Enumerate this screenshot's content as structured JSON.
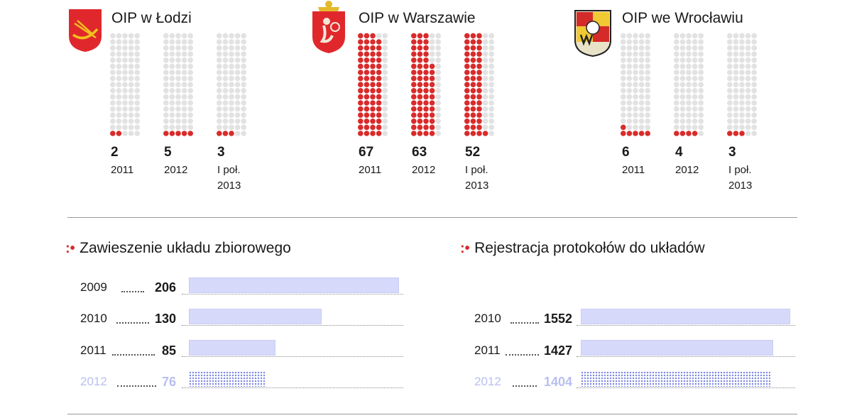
{
  "colors": {
    "dot_on": "#d92b2b",
    "dot_off": "#e2e2e2",
    "bar": "#d6d9fa",
    "projection": "#b9bff0",
    "accent": "#d62a2a"
  },
  "chart_data": [
    {
      "type": "dot-matrix",
      "title": "OIP w Łodzi",
      "emblem": "lodz-coat-of-arms-icon",
      "dots_per_column": 17,
      "columns_per_group": 5,
      "series": [
        {
          "value": 2,
          "value_label": "2",
          "label_lines": [
            "2011"
          ]
        },
        {
          "value": 5,
          "value_label": "5",
          "label_lines": [
            "2012"
          ]
        },
        {
          "value": 3,
          "value_label": "3",
          "label_lines": [
            "I poł.",
            "2013"
          ]
        }
      ]
    },
    {
      "type": "dot-matrix",
      "title": "OIP w Warszawie",
      "emblem": "warsaw-coat-of-arms-icon",
      "dots_per_column": 17,
      "columns_per_group": 5,
      "series": [
        {
          "value": 67,
          "value_label": "67",
          "label_lines": [
            "2011"
          ]
        },
        {
          "value": 63,
          "value_label": "63",
          "label_lines": [
            "2012"
          ]
        },
        {
          "value": 52,
          "value_label": "52",
          "label_lines": [
            "I poł.",
            "2013"
          ]
        }
      ]
    },
    {
      "type": "dot-matrix",
      "title": "OIP we Wrocławiu",
      "emblem": "wroclaw-coat-of-arms-icon",
      "dots_per_column": 17,
      "columns_per_group": 5,
      "series": [
        {
          "value": 6,
          "value_label": "6",
          "label_lines": [
            "2011"
          ]
        },
        {
          "value": 4,
          "value_label": "4",
          "label_lines": [
            "2012"
          ]
        },
        {
          "value": 3,
          "value_label": "3",
          "label_lines": [
            "I poł.",
            "2013"
          ]
        }
      ]
    },
    {
      "type": "bar",
      "orientation": "horizontal",
      "title": "Zawieszenie układu zbiorowego",
      "marker": ":•",
      "xlim": [
        0,
        206
      ],
      "categories": [
        "2009",
        "2010",
        "2011",
        "2012"
      ],
      "values": [
        206,
        130,
        85,
        76
      ],
      "value_labels": [
        "206",
        "130",
        "85",
        "76"
      ],
      "highlight": [
        false,
        false,
        false,
        true
      ]
    },
    {
      "type": "bar",
      "orientation": "horizontal",
      "title": "Rejestracja protokołów do układów",
      "marker": ":•",
      "xlim": [
        0,
        1552
      ],
      "categories": [
        "2010",
        "2011",
        "2012"
      ],
      "values": [
        1552,
        1427,
        1404
      ],
      "value_labels": [
        "1552",
        "1427",
        "1404"
      ],
      "highlight": [
        false,
        false,
        true
      ]
    }
  ]
}
